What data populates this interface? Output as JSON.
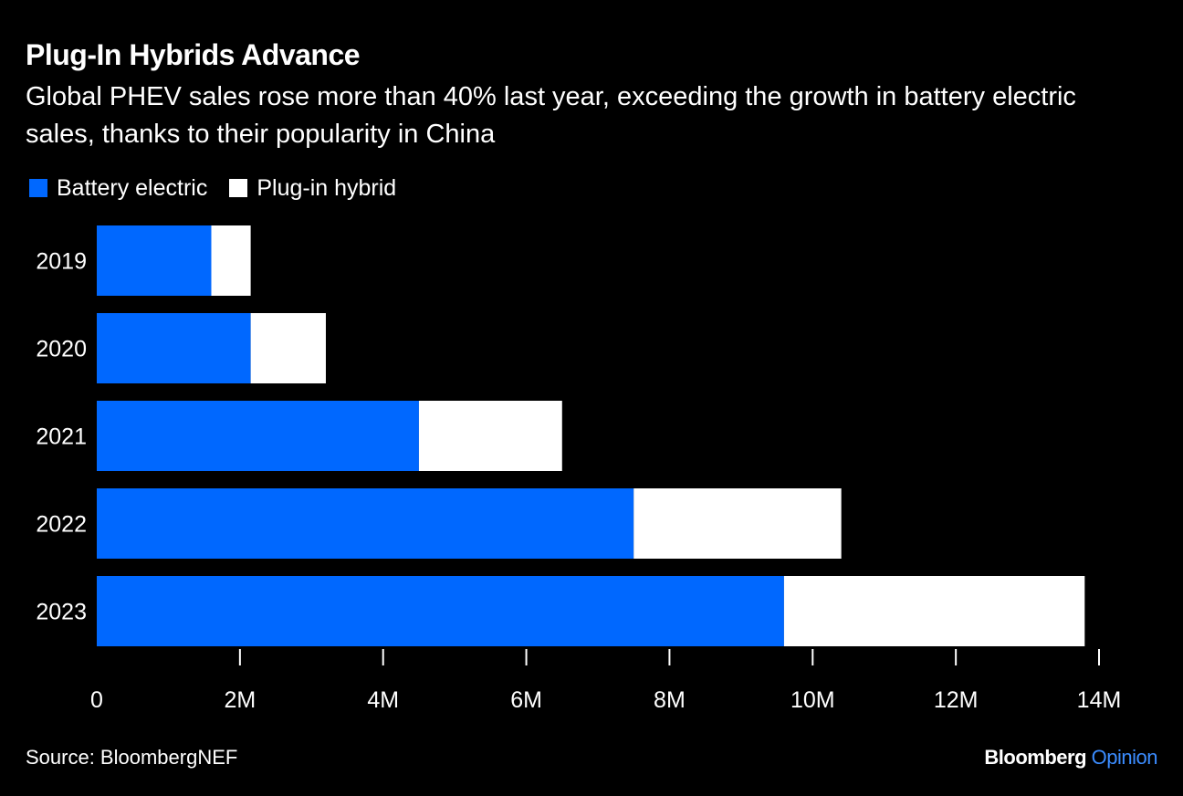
{
  "header": {
    "title": "Plug-In Hybrids Advance",
    "subtitle": "Global PHEV sales rose more than 40% last year, exceeding the growth in battery electric sales, thanks to their popularity in China"
  },
  "legend": {
    "items": [
      {
        "label": "Battery electric",
        "color": "#0068FF"
      },
      {
        "label": "Plug-in hybrid",
        "color": "#FFFFFF"
      }
    ]
  },
  "chart_data": {
    "type": "bar",
    "orientation": "horizontal",
    "stacked": true,
    "title": "Plug-In Hybrids Advance",
    "subtitle": "Global PHEV sales rose more than 40% last year, exceeding the growth in battery electric sales, thanks to their popularity in China",
    "categories": [
      "2019",
      "2020",
      "2021",
      "2022",
      "2023"
    ],
    "series": [
      {
        "name": "Battery electric",
        "color": "#0068FF",
        "values": [
          1.6,
          2.15,
          4.5,
          7.5,
          9.6
        ]
      },
      {
        "name": "Plug-in hybrid",
        "color": "#FFFFFF",
        "values": [
          0.55,
          1.05,
          2.0,
          2.9,
          4.2
        ]
      }
    ],
    "xlim": [
      0,
      14
    ],
    "xticks": [
      0,
      2,
      4,
      6,
      8,
      10,
      12,
      14
    ],
    "xtick_labels": [
      "0",
      "2M",
      "4M",
      "6M",
      "8M",
      "10M",
      "12M",
      "14M"
    ],
    "xlabel": "",
    "ylabel": "",
    "units": "million vehicles",
    "grid": false,
    "legend_position": "top-left"
  },
  "footer": {
    "source": "Source: BloombergNEF",
    "brand_name": "Bloomberg",
    "brand_section": "Opinion",
    "brand_section_color": "#3B8CFF"
  }
}
